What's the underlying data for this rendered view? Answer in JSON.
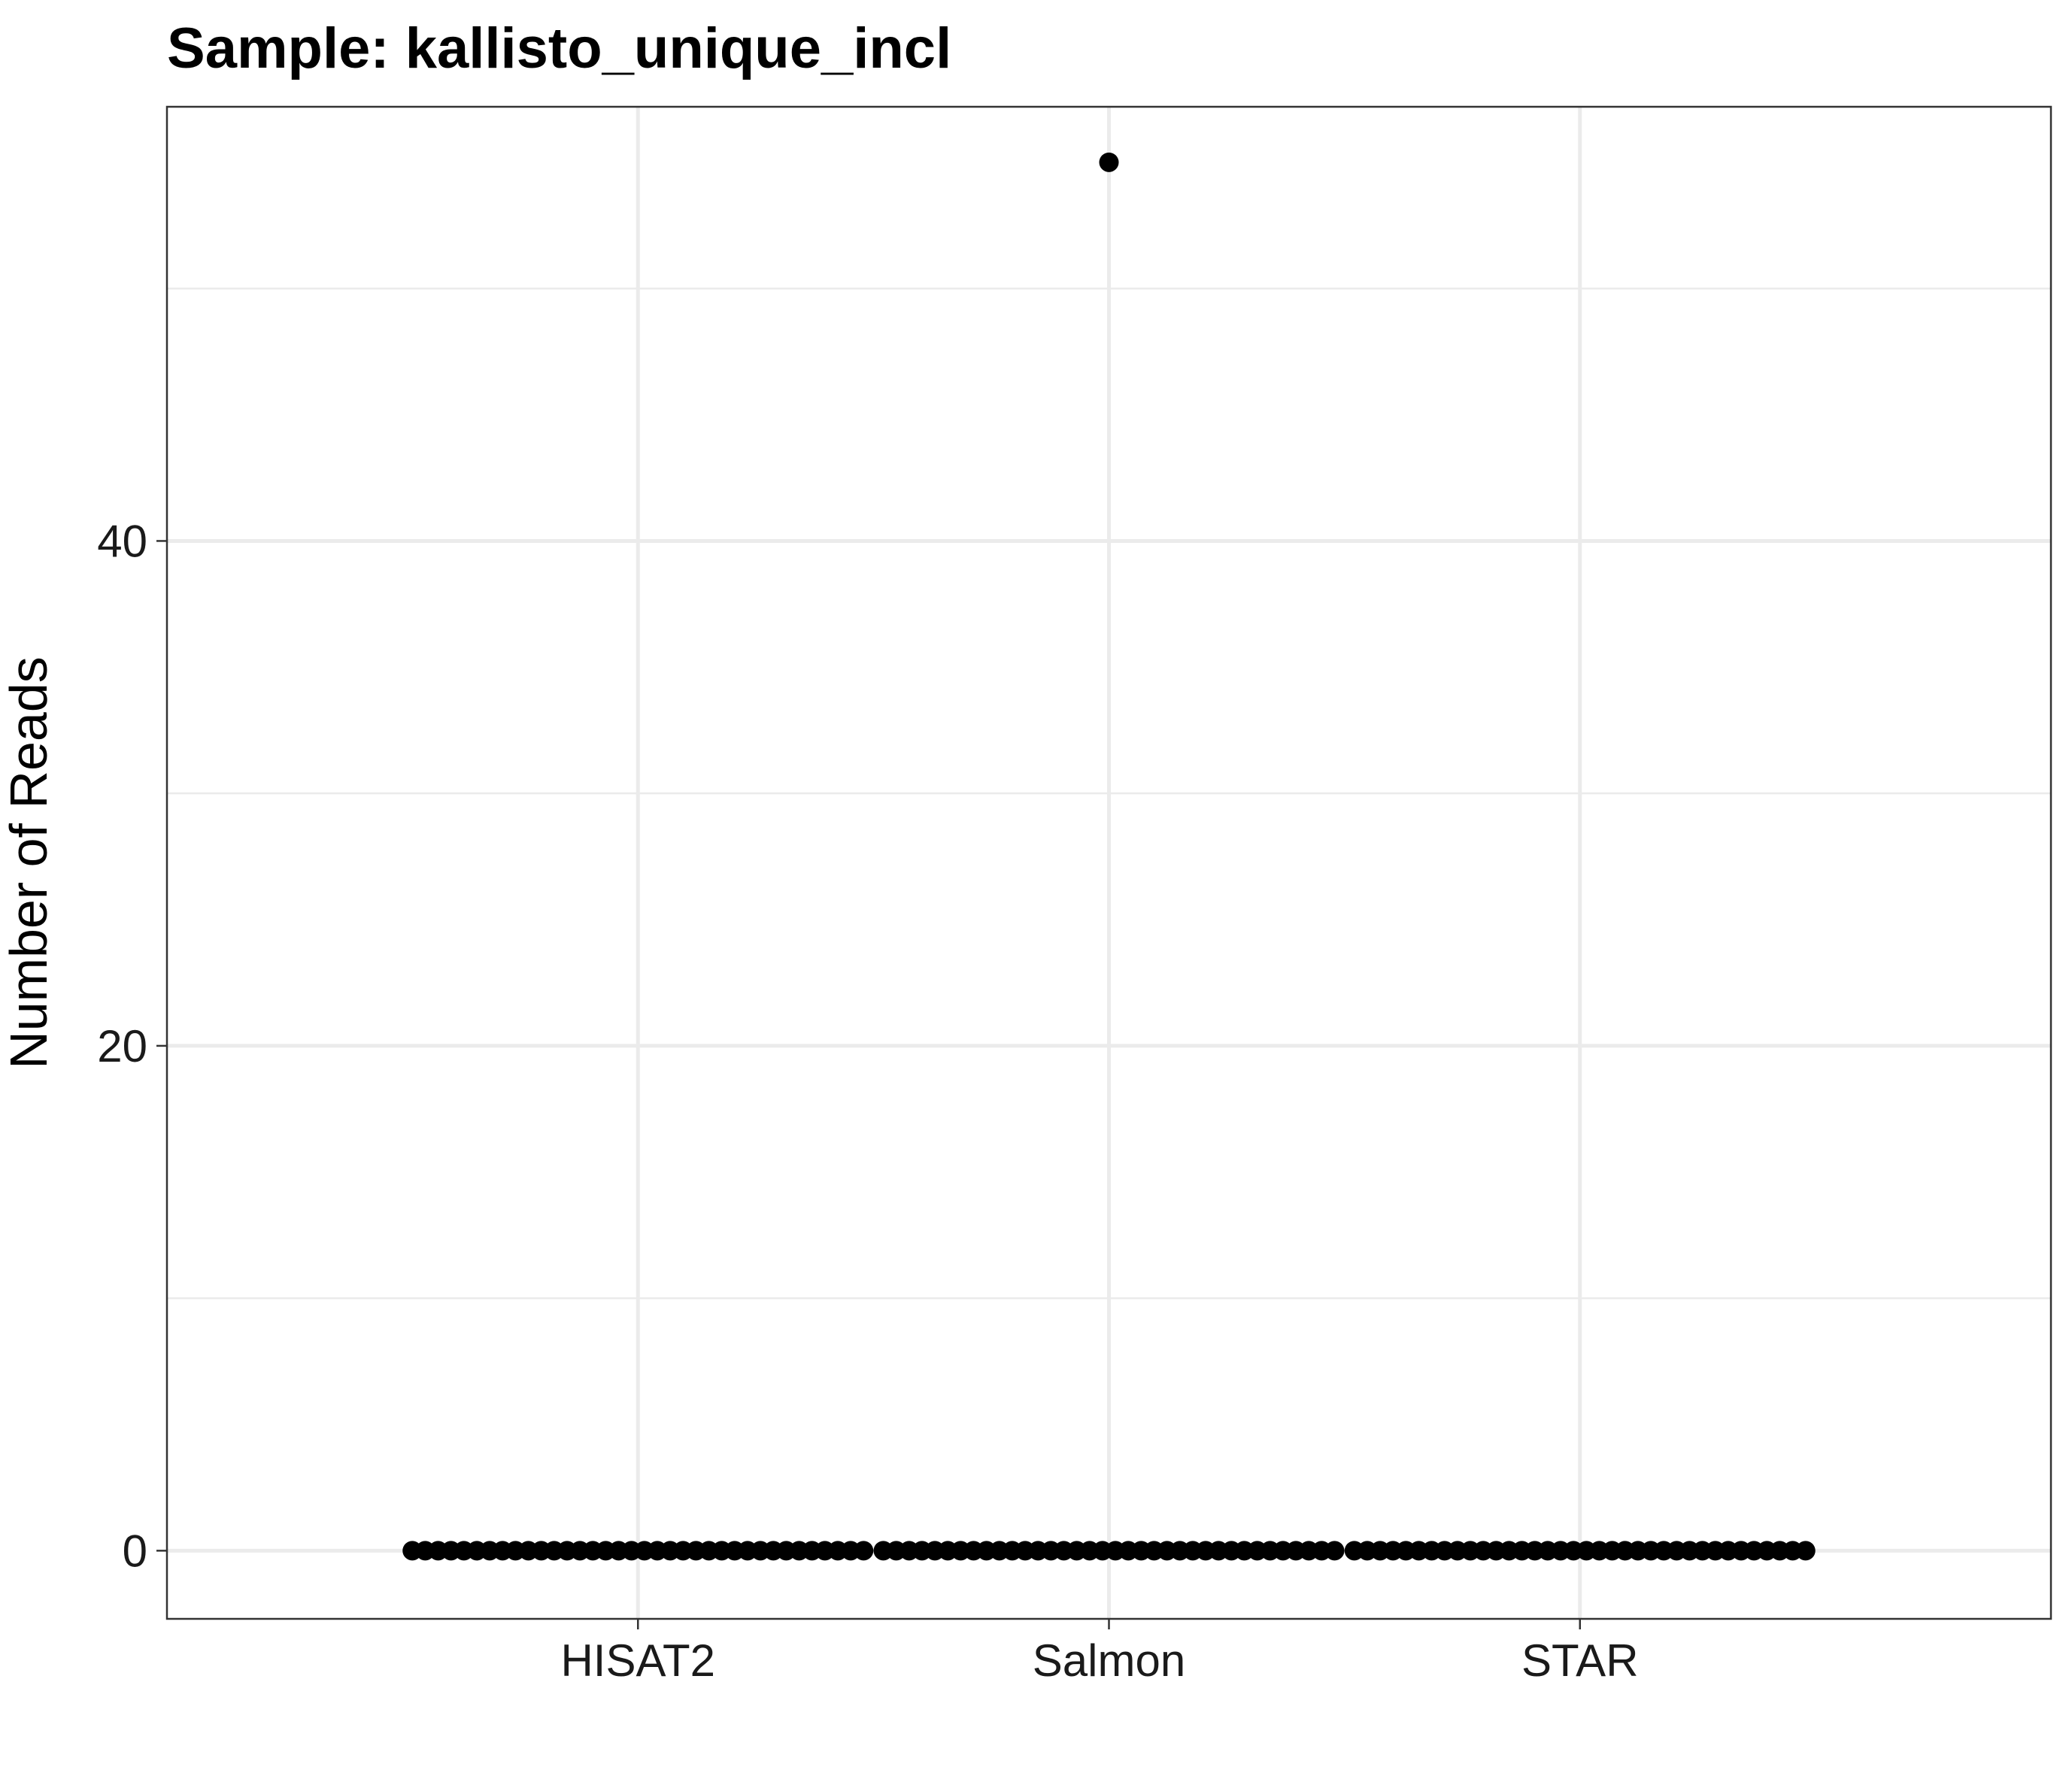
{
  "chart_data": {
    "type": "scatter",
    "title": "Sample: kallisto_unique_incl",
    "xlabel": "",
    "ylabel": "Number of Reads",
    "categories": [
      "HISAT2",
      "Salmon",
      "STAR"
    ],
    "yticks": [
      0,
      20,
      40
    ],
    "ylim": [
      -2.7,
      57.2
    ],
    "grid": true,
    "legend": "none",
    "point_color": "#000000",
    "groups": [
      {
        "category": "HISAT2",
        "zero_count": 36,
        "nonzero_values": []
      },
      {
        "category": "Salmon",
        "zero_count": 36,
        "nonzero_values": [
          55
        ]
      },
      {
        "category": "STAR",
        "zero_count": 36,
        "nonzero_values": []
      }
    ]
  }
}
